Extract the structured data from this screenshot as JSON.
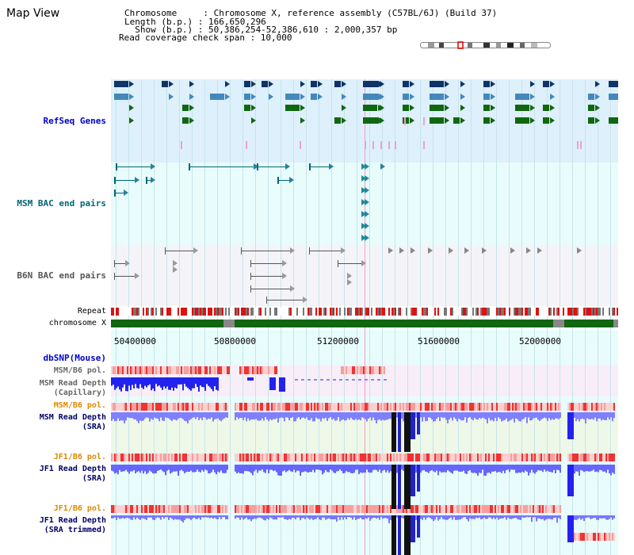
{
  "view_title": "Map View",
  "header": {
    "chromosome_line": "Chromosome     : Chromosome X, reference assembly (C57BL/6J) (Build 37)",
    "length_line": "Length (b.p.) : 166,650,296",
    "show_line": "  Show (b.p.) : 50,386,254-52,386,610 : 2,000,357 bp",
    "coverage_line": "Read coverage check span : 10,000"
  },
  "tracks": {
    "refseq": "RefSeq Genes",
    "msm_bac": "MSM BAC end pairs",
    "b6n_bac": "B6N BAC end pairs",
    "repeat": "Repeat",
    "chromosome": "chromosome X",
    "dbsnp": "dbSNP(Mouse)",
    "msm_pol_1": "MSM/B6 pol.",
    "msm_depth_cap_1": "MSM Read Depth",
    "msm_depth_cap_2": "(Capillary)",
    "msm_pol_2": "MSM/B6 pol.",
    "msm_depth_sra_1": "MSM Read Depth",
    "msm_depth_sra_2": "(SRA)",
    "jf1_pol_1": "JF1/B6 pol.",
    "jf1_depth_sra_1": "JF1 Read Depth",
    "jf1_depth_sra_2": "(SRA)",
    "jf1_pol_2": "JF1/B6 pol.",
    "jf1_depth_trim_1": "JF1 Read Depth",
    "jf1_depth_trim_2": "(SRA trimmed)"
  },
  "axis_ticks": [
    "50400000",
    "50800000",
    "51200000",
    "51600000",
    "52000000"
  ],
  "colors": {
    "refseq_bg": "#ddf0fb",
    "msm_bac_bg": "#e8fcfc",
    "b6n_bac_bg": "#f4f4f8",
    "chromosome_band": "#116611",
    "repeat_red": "#dd1111",
    "depth_blue": "#3333ee",
    "depth_light": "#8888ff",
    "pol_red": "#ee3333",
    "pol_pink": "#f8b8b8"
  }
}
